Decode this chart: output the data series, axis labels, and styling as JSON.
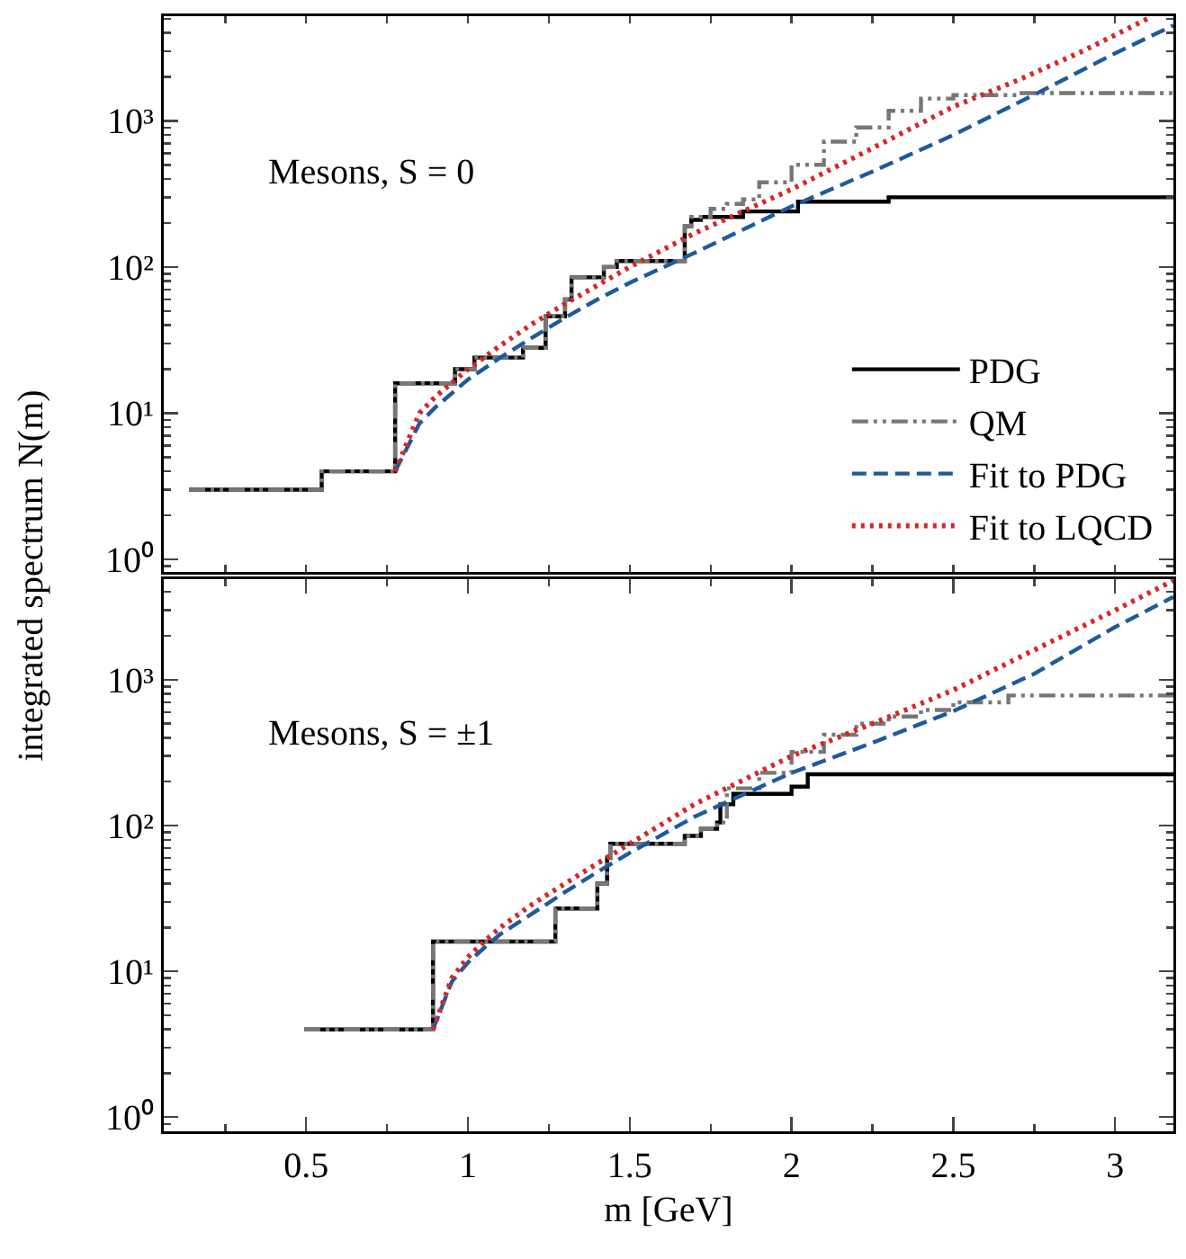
{
  "chart_data": [
    {
      "type": "step",
      "annotations": [
        "Mesons, S = 0"
      ],
      "ylabel": "integrated spectrum N(m)",
      "log": "y",
      "grid": false,
      "legend": "bottom right",
      "tick_labels": "y",
      "xlim": [
        0.06,
        3.18
      ],
      "xticks": [
        {
          "value": 0.5,
          "label": null
        },
        {
          "value": 1,
          "label": null
        },
        {
          "value": 1.5,
          "label": null
        },
        {
          "value": 2,
          "label": null
        },
        {
          "value": 2.5,
          "label": null
        },
        {
          "value": 3,
          "label": null
        }
      ],
      "ylim": [
        0.82,
        5200
      ],
      "yticks": [
        {
          "value": 1,
          "label": "10⁰"
        },
        {
          "value": 10,
          "label": "10¹"
        },
        {
          "value": 100,
          "label": "10²"
        },
        {
          "value": 1000,
          "label": "10³"
        }
      ],
      "series": [
        {
          "name": "PDG",
          "type": "step",
          "color": "#000000",
          "line_style": "solid",
          "x": [
            0.138,
            0.548,
            0.775,
            0.96,
            1.02,
            1.17,
            1.24,
            1.3,
            1.32,
            1.42,
            1.46,
            1.67,
            1.69,
            1.72,
            1.85,
            2.02,
            2.3,
            3.18
          ],
          "values": [
            3,
            4,
            16,
            20,
            24,
            28,
            46,
            60,
            85,
            100,
            110,
            190,
            210,
            220,
            240,
            280,
            300,
            300
          ]
        },
        {
          "name": "QM",
          "type": "step",
          "color": "#777777",
          "line_style": "dashdot",
          "x": [
            0.138,
            0.548,
            0.775,
            0.96,
            1.02,
            1.17,
            1.24,
            1.3,
            1.32,
            1.42,
            1.46,
            1.67,
            1.69,
            1.75,
            1.8,
            1.85,
            1.9,
            2.0,
            2.1,
            2.2,
            2.3,
            2.4,
            2.5,
            2.7,
            3.18
          ],
          "values": [
            3,
            4,
            16,
            20,
            24,
            28,
            46,
            60,
            85,
            100,
            110,
            190,
            220,
            250,
            270,
            290,
            380,
            500,
            720,
            900,
            1170,
            1420,
            1500,
            1550,
            1550
          ]
        },
        {
          "name": "Fit to PDG",
          "type": "line",
          "color": "#1f5a9c",
          "line_style": "dashed",
          "x": [
            0.775,
            0.85,
            0.9,
            1.0,
            1.1,
            1.2,
            1.3,
            1.4,
            1.5,
            1.7,
            2.0,
            2.25,
            2.5,
            2.76,
            3.0,
            3.18
          ],
          "values": [
            4,
            8.5,
            11,
            17,
            24,
            33,
            45,
            60,
            78,
            125,
            260,
            450,
            800,
            1550,
            2900,
            4500
          ]
        },
        {
          "name": "Fit to LQCD",
          "type": "line",
          "color": "#d62728",
          "line_style": "dotted",
          "x": [
            0.775,
            0.85,
            0.9,
            1.0,
            1.1,
            1.2,
            1.3,
            1.4,
            1.5,
            1.7,
            2.0,
            2.25,
            2.5,
            2.7,
            2.9,
            3.1
          ],
          "values": [
            4,
            10,
            13,
            20,
            29,
            41,
            56,
            75,
            100,
            170,
            340,
            650,
            1250,
            1900,
            3000,
            5000
          ]
        }
      ]
    },
    {
      "type": "step",
      "annotations": [
        "Mesons, S = ±1"
      ],
      "xlabel": "m [GeV]",
      "log": "y",
      "grid": false,
      "xlim": [
        0.06,
        3.18
      ],
      "xticks": [
        {
          "value": 0.5,
          "label": "0.5"
        },
        {
          "value": 1,
          "label": "1"
        },
        {
          "value": 1.5,
          "label": "1.5"
        },
        {
          "value": 2,
          "label": "2"
        },
        {
          "value": 2.5,
          "label": "2.5"
        },
        {
          "value": 3,
          "label": "3"
        }
      ],
      "ylim": [
        0.8,
        4900
      ],
      "yticks": [
        {
          "value": 1,
          "label": "10⁰"
        },
        {
          "value": 10,
          "label": "10¹"
        },
        {
          "value": 100,
          "label": "10²"
        },
        {
          "value": 1000,
          "label": "10³"
        }
      ],
      "series": [
        {
          "type": "step",
          "color": "#000000",
          "line_style": "solid",
          "x": [
            0.494,
            0.892,
            1.27,
            1.4,
            1.43,
            1.44,
            1.67,
            1.72,
            1.77,
            1.78,
            1.82,
            2.0,
            2.05,
            3.18
          ],
          "values": [
            4,
            16,
            27,
            40,
            60,
            75,
            85,
            95,
            105,
            140,
            165,
            185,
            225,
            225
          ]
        },
        {
          "type": "step",
          "color": "#777777",
          "line_style": "dashdot",
          "x": [
            0.494,
            0.892,
            1.27,
            1.4,
            1.43,
            1.44,
            1.67,
            1.72,
            1.77,
            1.8,
            1.9,
            2.0,
            2.1,
            2.2,
            2.3,
            2.4,
            2.5,
            2.67,
            3.18
          ],
          "values": [
            4,
            16,
            27,
            40,
            60,
            75,
            85,
            95,
            105,
            180,
            230,
            320,
            420,
            500,
            560,
            620,
            700,
            780,
            780
          ]
        },
        {
          "type": "line",
          "color": "#1f5a9c",
          "line_style": "dashed",
          "x": [
            0.892,
            0.95,
            1.0,
            1.05,
            1.1,
            1.2,
            1.3,
            1.4,
            1.5,
            1.7,
            2.0,
            2.25,
            2.5,
            2.75,
            3.0,
            3.18
          ],
          "values": [
            4,
            8.5,
            11.5,
            14.5,
            18,
            25,
            35,
            48,
            65,
            115,
            230,
            370,
            610,
            1100,
            2300,
            3700
          ]
        },
        {
          "type": "line",
          "color": "#d62728",
          "line_style": "dotted",
          "x": [
            0.892,
            0.95,
            1.0,
            1.05,
            1.1,
            1.2,
            1.3,
            1.4,
            1.5,
            1.7,
            2.0,
            2.25,
            2.5,
            2.75,
            3.0,
            3.18
          ],
          "values": [
            4,
            9,
            12.5,
            16,
            20,
            29,
            40,
            55,
            75,
            140,
            300,
            500,
            850,
            1600,
            3000,
            4800
          ]
        }
      ]
    }
  ]
}
